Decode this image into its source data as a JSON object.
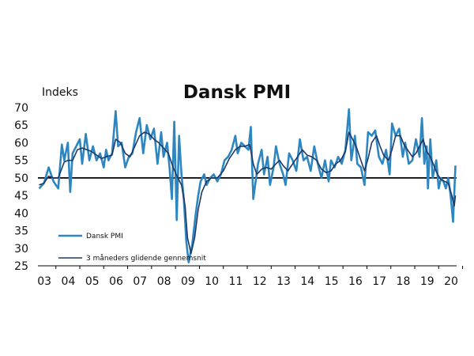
{
  "chart_data": {
    "type": "line",
    "title": "Dansk PMI",
    "ylabel": "Indeks",
    "xlabel": "",
    "ylim": [
      25,
      70
    ],
    "yticks": [
      70,
      65,
      60,
      55,
      50,
      45,
      40,
      35,
      30,
      25
    ],
    "xlim": [
      2002.75,
      2020.25
    ],
    "xtick_labels": [
      "03",
      "04",
      "05",
      "06",
      "07",
      "08",
      "09",
      "10",
      "11",
      "12",
      "13",
      "14",
      "15",
      "16",
      "17",
      "18",
      "19",
      "20"
    ],
    "reference_line": 50,
    "grid": false,
    "legend_position": "lower-left",
    "colors": {
      "pmi": "#2e86c1",
      "avg": "#1f3864",
      "reference": "#000000"
    },
    "series": [
      {
        "name": "Dansk PMI",
        "points": [
          [
            2002.8,
            47
          ],
          [
            2003.0,
            48.5
          ],
          [
            2003.2,
            53
          ],
          [
            2003.4,
            49
          ],
          [
            2003.6,
            47
          ],
          [
            2003.75,
            59.5
          ],
          [
            2003.85,
            55
          ],
          [
            2004.0,
            60
          ],
          [
            2004.1,
            46
          ],
          [
            2004.2,
            57
          ],
          [
            2004.35,
            59
          ],
          [
            2004.5,
            61
          ],
          [
            2004.6,
            54
          ],
          [
            2004.75,
            62.5
          ],
          [
            2004.9,
            55
          ],
          [
            2005.05,
            59
          ],
          [
            2005.2,
            55
          ],
          [
            2005.35,
            57
          ],
          [
            2005.5,
            53
          ],
          [
            2005.6,
            58
          ],
          [
            2005.7,
            55
          ],
          [
            2005.85,
            57
          ],
          [
            2006.0,
            69
          ],
          [
            2006.1,
            59
          ],
          [
            2006.25,
            60
          ],
          [
            2006.4,
            53
          ],
          [
            2006.55,
            56
          ],
          [
            2006.7,
            57
          ],
          [
            2006.85,
            63
          ],
          [
            2007.0,
            67
          ],
          [
            2007.15,
            57
          ],
          [
            2007.3,
            65
          ],
          [
            2007.45,
            61
          ],
          [
            2007.6,
            64
          ],
          [
            2007.75,
            54
          ],
          [
            2007.9,
            63
          ],
          [
            2008.0,
            56
          ],
          [
            2008.15,
            60
          ],
          [
            2008.25,
            53
          ],
          [
            2008.35,
            44
          ],
          [
            2008.45,
            66
          ],
          [
            2008.55,
            38
          ],
          [
            2008.65,
            62
          ],
          [
            2008.75,
            51
          ],
          [
            2008.85,
            44
          ],
          [
            2008.95,
            32
          ],
          [
            2009.05,
            26
          ],
          [
            2009.2,
            31
          ],
          [
            2009.35,
            40
          ],
          [
            2009.45,
            45
          ],
          [
            2009.55,
            49
          ],
          [
            2009.7,
            51
          ],
          [
            2009.8,
            48
          ],
          [
            2009.95,
            50
          ],
          [
            2010.1,
            51
          ],
          [
            2010.25,
            49
          ],
          [
            2010.4,
            51
          ],
          [
            2010.55,
            55
          ],
          [
            2010.7,
            56
          ],
          [
            2010.85,
            58
          ],
          [
            2011.0,
            62
          ],
          [
            2011.1,
            57
          ],
          [
            2011.25,
            60
          ],
          [
            2011.4,
            59
          ],
          [
            2011.55,
            58
          ],
          [
            2011.65,
            64.5
          ],
          [
            2011.75,
            44
          ],
          [
            2011.85,
            49
          ],
          [
            2011.95,
            54
          ],
          [
            2012.1,
            58
          ],
          [
            2012.2,
            51
          ],
          [
            2012.35,
            56
          ],
          [
            2012.45,
            48
          ],
          [
            2012.6,
            53
          ],
          [
            2012.7,
            59
          ],
          [
            2012.85,
            54
          ],
          [
            2013.0,
            51
          ],
          [
            2013.1,
            48
          ],
          [
            2013.25,
            57
          ],
          [
            2013.4,
            55
          ],
          [
            2013.55,
            52
          ],
          [
            2013.7,
            61
          ],
          [
            2013.85,
            55
          ],
          [
            2014.0,
            56
          ],
          [
            2014.15,
            52
          ],
          [
            2014.3,
            59
          ],
          [
            2014.45,
            54
          ],
          [
            2014.6,
            50
          ],
          [
            2014.75,
            55
          ],
          [
            2014.9,
            49
          ],
          [
            2015.0,
            55
          ],
          [
            2015.15,
            53
          ],
          [
            2015.3,
            56
          ],
          [
            2015.45,
            54
          ],
          [
            2015.6,
            58
          ],
          [
            2015.75,
            69.5
          ],
          [
            2015.85,
            55
          ],
          [
            2016.0,
            62
          ],
          [
            2016.1,
            54
          ],
          [
            2016.25,
            53
          ],
          [
            2016.4,
            48
          ],
          [
            2016.55,
            63
          ],
          [
            2016.7,
            62
          ],
          [
            2016.85,
            63.5
          ],
          [
            2017.0,
            56
          ],
          [
            2017.15,
            54
          ],
          [
            2017.3,
            58
          ],
          [
            2017.45,
            51
          ],
          [
            2017.55,
            65.5
          ],
          [
            2017.7,
            62
          ],
          [
            2017.85,
            64
          ],
          [
            2018.0,
            56
          ],
          [
            2018.1,
            60
          ],
          [
            2018.25,
            54
          ],
          [
            2018.4,
            55
          ],
          [
            2018.55,
            61
          ],
          [
            2018.7,
            56
          ],
          [
            2018.8,
            67
          ],
          [
            2018.9,
            54
          ],
          [
            2019.0,
            59
          ],
          [
            2019.05,
            47
          ],
          [
            2019.15,
            61
          ],
          [
            2019.25,
            50
          ],
          [
            2019.4,
            55
          ],
          [
            2019.5,
            47
          ],
          [
            2019.6,
            50
          ],
          [
            2019.7,
            49
          ],
          [
            2019.8,
            47
          ],
          [
            2019.9,
            50
          ],
          [
            2020.0,
            45
          ],
          [
            2020.1,
            37.5
          ],
          [
            2020.2,
            53.5
          ]
        ]
      },
      {
        "name": "3 måneders glidende gennemsnit",
        "points": [
          [
            2002.8,
            48
          ],
          [
            2003.0,
            48.5
          ],
          [
            2003.2,
            50.5
          ],
          [
            2003.4,
            50
          ],
          [
            2003.6,
            50
          ],
          [
            2003.85,
            54.5
          ],
          [
            2004.0,
            55
          ],
          [
            2004.2,
            55
          ],
          [
            2004.4,
            58
          ],
          [
            2004.6,
            58.5
          ],
          [
            2004.8,
            58
          ],
          [
            2005.0,
            57.5
          ],
          [
            2005.2,
            56.5
          ],
          [
            2005.4,
            55.5
          ],
          [
            2005.6,
            56
          ],
          [
            2005.85,
            56.5
          ],
          [
            2006.0,
            61
          ],
          [
            2006.2,
            60
          ],
          [
            2006.4,
            57
          ],
          [
            2006.6,
            56
          ],
          [
            2006.8,
            59
          ],
          [
            2007.0,
            62
          ],
          [
            2007.2,
            63
          ],
          [
            2007.4,
            62.5
          ],
          [
            2007.6,
            61
          ],
          [
            2007.8,
            60
          ],
          [
            2008.0,
            58.5
          ],
          [
            2008.2,
            57
          ],
          [
            2008.4,
            53
          ],
          [
            2008.6,
            50
          ],
          [
            2008.75,
            48
          ],
          [
            2008.9,
            42
          ],
          [
            2009.0,
            33
          ],
          [
            2009.15,
            28.5
          ],
          [
            2009.3,
            33
          ],
          [
            2009.45,
            41
          ],
          [
            2009.6,
            46
          ],
          [
            2009.8,
            49
          ],
          [
            2010.0,
            50
          ],
          [
            2010.25,
            50
          ],
          [
            2010.5,
            52
          ],
          [
            2010.75,
            55.5
          ],
          [
            2011.0,
            58
          ],
          [
            2011.2,
            59
          ],
          [
            2011.4,
            59
          ],
          [
            2011.6,
            59.5
          ],
          [
            2011.75,
            54
          ],
          [
            2011.9,
            51
          ],
          [
            2012.1,
            52.5
          ],
          [
            2012.3,
            53
          ],
          [
            2012.5,
            52.5
          ],
          [
            2012.7,
            54
          ],
          [
            2012.85,
            55
          ],
          [
            2013.0,
            53.5
          ],
          [
            2013.2,
            52
          ],
          [
            2013.4,
            54
          ],
          [
            2013.6,
            56
          ],
          [
            2013.8,
            58
          ],
          [
            2014.0,
            56.5
          ],
          [
            2014.2,
            56
          ],
          [
            2014.4,
            55
          ],
          [
            2014.6,
            52.5
          ],
          [
            2014.8,
            51.5
          ],
          [
            2015.0,
            52
          ],
          [
            2015.2,
            54
          ],
          [
            2015.4,
            55
          ],
          [
            2015.6,
            57.5
          ],
          [
            2015.75,
            63
          ],
          [
            2015.9,
            61
          ],
          [
            2016.05,
            59
          ],
          [
            2016.2,
            56
          ],
          [
            2016.4,
            52
          ],
          [
            2016.55,
            55.5
          ],
          [
            2016.7,
            60
          ],
          [
            2016.9,
            62
          ],
          [
            2017.05,
            59
          ],
          [
            2017.2,
            56.5
          ],
          [
            2017.4,
            55
          ],
          [
            2017.55,
            58
          ],
          [
            2017.7,
            62
          ],
          [
            2017.9,
            62
          ],
          [
            2018.05,
            59.5
          ],
          [
            2018.2,
            58
          ],
          [
            2018.4,
            56
          ],
          [
            2018.55,
            57
          ],
          [
            2018.7,
            59
          ],
          [
            2018.85,
            61
          ],
          [
            2019.0,
            57.5
          ],
          [
            2019.15,
            56
          ],
          [
            2019.3,
            53.5
          ],
          [
            2019.45,
            51
          ],
          [
            2019.6,
            49.5
          ],
          [
            2019.75,
            49
          ],
          [
            2019.9,
            48.5
          ],
          [
            2020.05,
            45
          ],
          [
            2020.15,
            42
          ],
          [
            2020.2,
            45
          ]
        ]
      }
    ]
  }
}
